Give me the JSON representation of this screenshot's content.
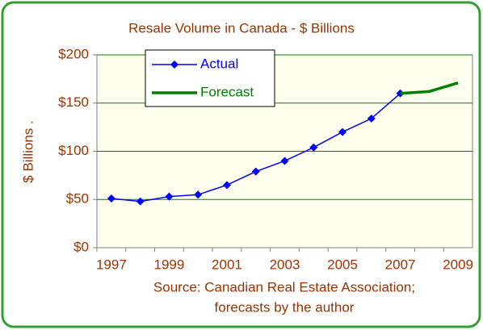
{
  "chart_data": {
    "type": "line",
    "title": "Resale Volume in Canada - $ Billions",
    "ylabel": "$ Billions .",
    "annotations": [
      "Source: Canadian Real Estate Association;",
      "forecasts by the author"
    ],
    "categories": [
      "1997",
      null,
      "1999",
      null,
      "2001",
      null,
      "2003",
      null,
      "2005",
      null,
      "2007",
      null,
      "2009"
    ],
    "series": [
      {
        "name": "Actual",
        "color": "#0000ff",
        "values": [
          51,
          48,
          53,
          55,
          65,
          79,
          90,
          104,
          120,
          134,
          160,
          null,
          null
        ]
      },
      {
        "name": "Forecast",
        "color": "#008000",
        "values": [
          null,
          null,
          null,
          null,
          null,
          null,
          null,
          null,
          null,
          null,
          160,
          162,
          171
        ]
      }
    ],
    "ylim": [
      0,
      200
    ],
    "yticks": [
      {
        "value": 0,
        "label": "$0"
      },
      {
        "value": 50,
        "label": "$50"
      },
      {
        "value": 100,
        "label": "$100"
      },
      {
        "value": 150,
        "label": "$150"
      },
      {
        "value": 200,
        "label": "$200"
      }
    ],
    "grid": true,
    "legend": "upper left"
  }
}
